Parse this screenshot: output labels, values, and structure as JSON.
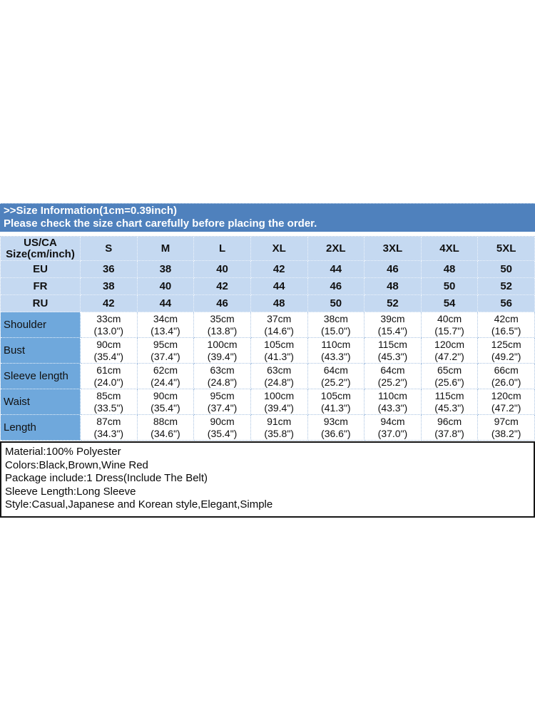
{
  "header": {
    "title": ">>Size Information(1cm=0.39inch)",
    "caution": "Please check the size chart carefully before placing the order."
  },
  "size_table": {
    "corner": {
      "line1": "US/CA",
      "line2": "Size(cm/inch)"
    },
    "size_headers": [
      "S",
      "M",
      "L",
      "XL",
      "2XL",
      "3XL",
      "4XL",
      "5XL"
    ],
    "region_rows": [
      {
        "label": "EU",
        "values": [
          "36",
          "38",
          "40",
          "42",
          "44",
          "46",
          "48",
          "50"
        ]
      },
      {
        "label": "FR",
        "values": [
          "38",
          "40",
          "42",
          "44",
          "46",
          "48",
          "50",
          "52"
        ]
      },
      {
        "label": "RU",
        "values": [
          "42",
          "44",
          "46",
          "48",
          "50",
          "52",
          "54",
          "56"
        ]
      }
    ],
    "measurement_rows": [
      {
        "label": "Shoulder",
        "cm": [
          "33cm",
          "34cm",
          "35cm",
          "37cm",
          "38cm",
          "39cm",
          "40cm",
          "42cm"
        ],
        "inch": [
          "(13.0\")",
          "(13.4\")",
          "(13.8\")",
          "(14.6\")",
          "(15.0\")",
          "(15.4\")",
          "(15.7\")",
          "(16.5\")"
        ]
      },
      {
        "label": "Bust",
        "cm": [
          "90cm",
          "95cm",
          "100cm",
          "105cm",
          "110cm",
          "115cm",
          "120cm",
          "125cm"
        ],
        "inch": [
          "(35.4\")",
          "(37.4\")",
          "(39.4\")",
          "(41.3\")",
          "(43.3\")",
          "(45.3\")",
          "(47.2\")",
          "(49.2\")"
        ]
      },
      {
        "label": "Sleeve length",
        "cm": [
          "61cm",
          "62cm",
          "63cm",
          "63cm",
          "64cm",
          "64cm",
          "65cm",
          "66cm"
        ],
        "inch": [
          "(24.0\")",
          "(24.4\")",
          "(24.8\")",
          "(24.8\")",
          "(25.2\")",
          "(25.2\")",
          "(25.6\")",
          "(26.0\")"
        ]
      },
      {
        "label": "Waist",
        "cm": [
          "85cm",
          "90cm",
          "95cm",
          "100cm",
          "105cm",
          "110cm",
          "115cm",
          "120cm"
        ],
        "inch": [
          "(33.5\")",
          "(35.4\")",
          "(37.4\")",
          "(39.4\")",
          "(41.3\")",
          "(43.3\")",
          "(45.3\")",
          "(47.2\")"
        ]
      },
      {
        "label": "Length",
        "cm": [
          "87cm",
          "88cm",
          "90cm",
          "91cm",
          "93cm",
          "94cm",
          "96cm",
          "97cm"
        ],
        "inch": [
          "(34.3\")",
          "(34.6\")",
          "(35.4\")",
          "(35.8\")",
          "(36.6\")",
          "(37.0\")",
          "(37.8\")",
          "(38.2\")"
        ]
      }
    ]
  },
  "product_info": {
    "lines": [
      "Material:100% Polyester",
      "Colors:Black,Brown,Wine Red",
      "Package include:1 Dress(Include The Belt)",
      "Sleeve Length:Long Sleeve",
      "Style:Casual,Japanese and Korean style,Elegant,Simple"
    ]
  },
  "colors": {
    "header_bar_bg": "#4f81bd",
    "light_row_bg": "#c5d9f1",
    "label_column_bg": "#6fa8dc",
    "grid_line_blue": "#a8c2e1",
    "info_border": "#161616",
    "header_text": "#ffffff",
    "body_text": "#111111"
  }
}
